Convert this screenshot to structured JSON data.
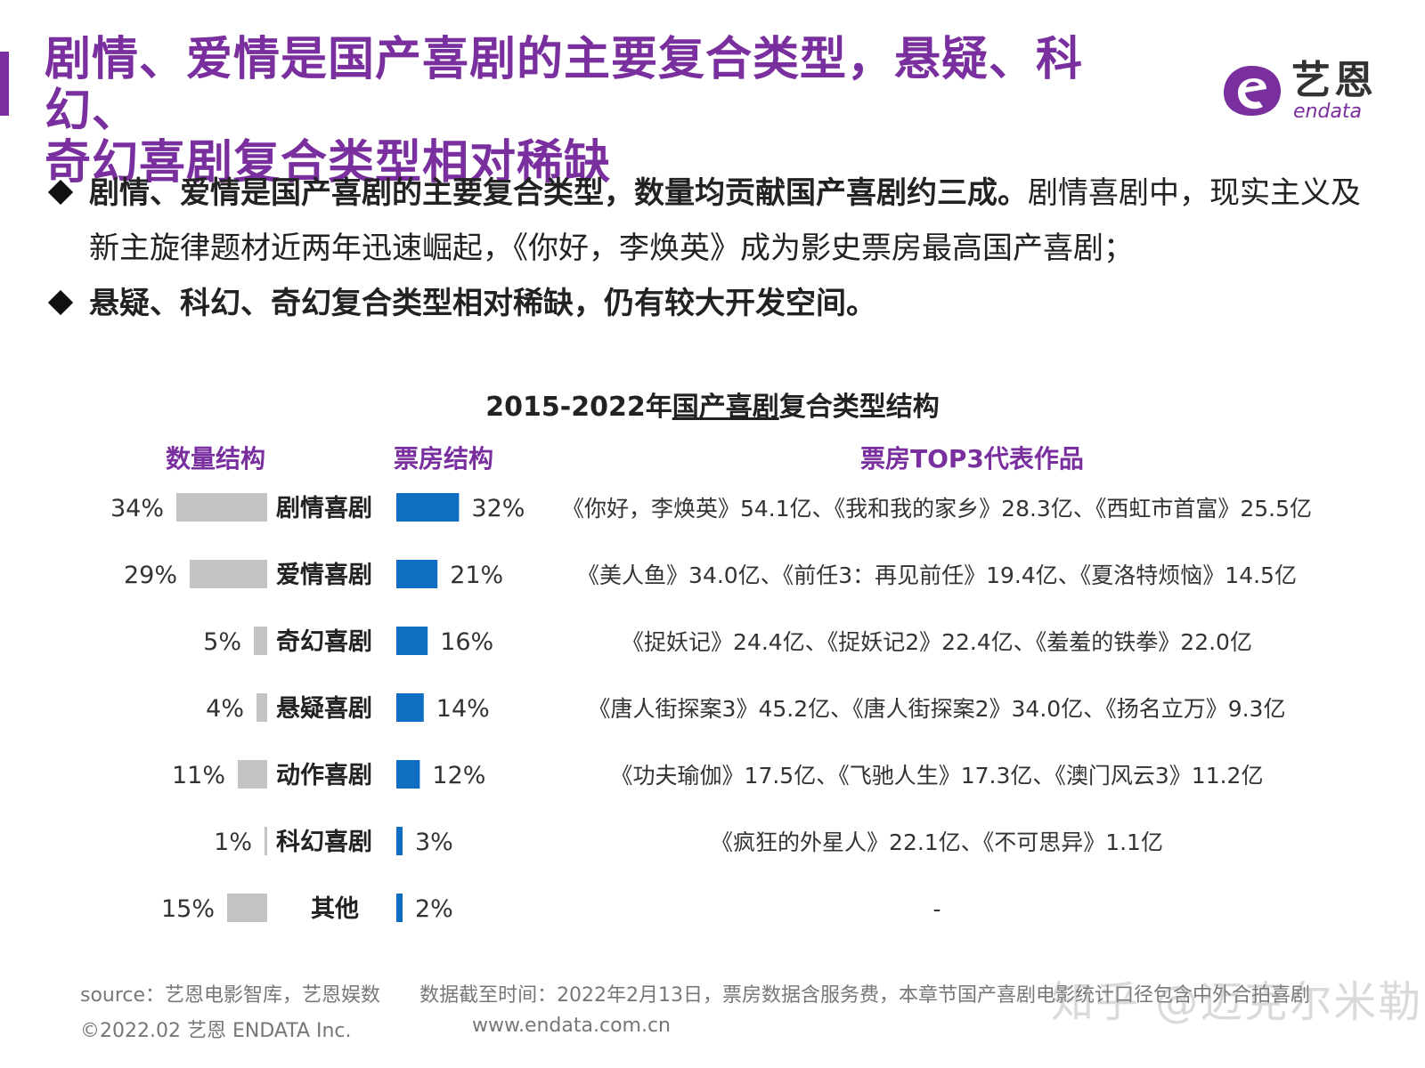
{
  "header": {
    "title_line1": "剧情、爱情是国产喜剧的主要复合类型，悬疑、科幻、",
    "title_line2": "奇幻喜剧复合类型相对稀缺",
    "logo_cn": "艺恩",
    "logo_en": "endata"
  },
  "bullets": [
    {
      "bold": "剧情、爱情是国产喜剧的主要复合类型，数量均贡献国产喜剧约三成。",
      "normal": "剧情喜剧中，现实主义及新主旋律题材近两年迅速崛起，《你好，李焕英》成为影史票房最高国产喜剧；"
    },
    {
      "bold": "悬疑、科幻、奇幻复合类型相对稀缺，仍有较大开发空间。",
      "normal": ""
    }
  ],
  "chart_title": {
    "prefix": "2015-2022年",
    "underlined": "国产喜剧",
    "suffix": "复合类型结构"
  },
  "columns": {
    "count": "数量结构",
    "boxoffice": "票房结构",
    "top3": "票房TOP3代表作品"
  },
  "colors": {
    "accent": "#7a2f9e",
    "count_bar": "#c3c3c3",
    "boxoffice_bar": "#0f6ec2"
  },
  "chart_data": {
    "type": "bar",
    "title": "2015-2022年国产喜剧复合类型结构",
    "categories": [
      "剧情喜剧",
      "爱情喜剧",
      "奇幻喜剧",
      "悬疑喜剧",
      "动作喜剧",
      "科幻喜剧",
      "其他"
    ],
    "series": [
      {
        "name": "数量结构",
        "values": [
          34,
          29,
          5,
          4,
          11,
          1,
          15
        ],
        "labels": [
          "34%",
          "29%",
          "5%",
          "4%",
          "11%",
          "1%",
          "15%"
        ]
      },
      {
        "name": "票房结构",
        "values": [
          32,
          21,
          16,
          14,
          12,
          3,
          2
        ],
        "labels": [
          "32%",
          "21%",
          "16%",
          "14%",
          "12%",
          "3%",
          "2%"
        ]
      }
    ],
    "top3": [
      "《你好，李焕英》54.1亿、《我和我的家乡》28.3亿、《西虹市首富》25.5亿",
      "《美人鱼》34.0亿、《前任3：再见前任》19.4亿、《夏洛特烦恼》14.5亿",
      "《捉妖记》24.4亿、《捉妖记2》22.4亿、《羞羞的铁拳》22.0亿",
      "《唐人街探案3》45.2亿、《唐人街探案2》34.0亿、《扬名立万》9.3亿",
      "《功夫瑜伽》17.5亿、《飞驰人生》17.3亿、《澳门风云3》11.2亿",
      "《疯狂的外星人》22.1亿、《不可思异》1.1亿",
      "-"
    ]
  },
  "footer": {
    "source": "source：艺恩电影智库，艺恩娱数",
    "note": "数据截至时间：2022年2月13日，票房数据含服务费，本章节国产喜剧电影统计口径包含中外合拍喜剧",
    "copyright": "©2022.02 艺恩 ENDATA Inc.",
    "website": "www.endata.com.cn",
    "watermark": "知乎 @迈克尔米勒"
  }
}
